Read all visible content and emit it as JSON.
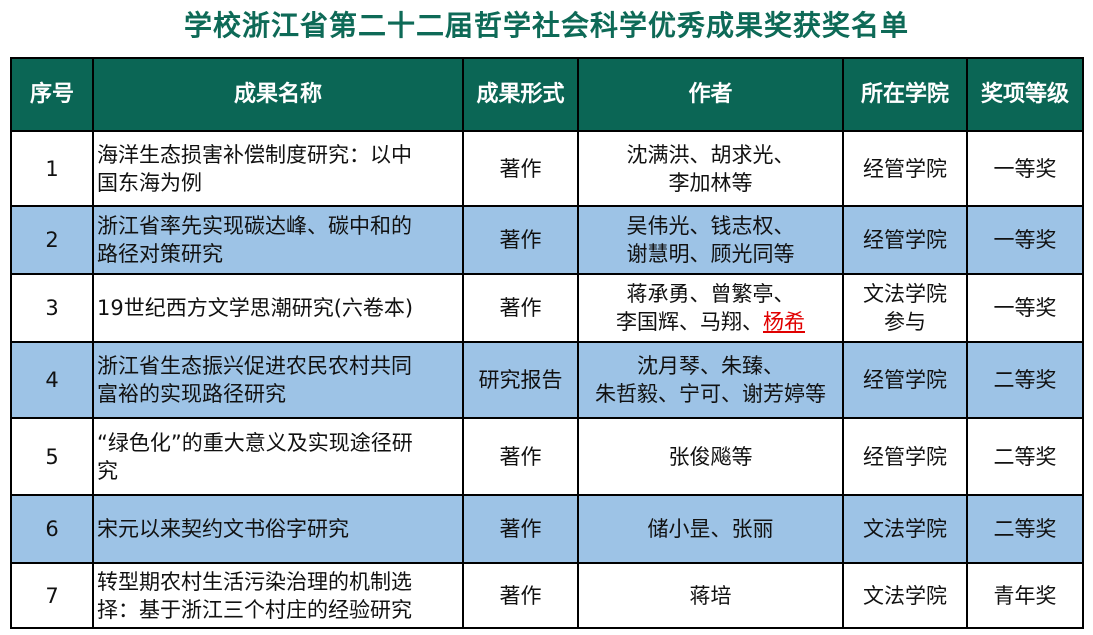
{
  "title": "学校浙江省第二十二届哲学社会科学优秀成果奖获奖名单",
  "headers": [
    "序号",
    "成果名称",
    "成果形式",
    "作者",
    "所在学院",
    "奖项等级"
  ],
  "colors": {
    "header_bg": "#0b6655",
    "title": "#0e6a57",
    "alt_row": "#9dc3e6",
    "highlight": "#e00000"
  },
  "rows": [
    {
      "no": "1",
      "name": [
        "海洋生态损害补偿制度研究：以中",
        "国东海为例"
      ],
      "form": "著作",
      "authors": [
        "沈满洪、胡求光、",
        "李加林等"
      ],
      "college": [
        "经管学院"
      ],
      "award": "一等奖"
    },
    {
      "no": "2",
      "name": [
        "浙江省率先实现碳达峰、碳中和的",
        "路径对策研究"
      ],
      "form": "著作",
      "authors": [
        "吴伟光、钱志权、",
        "谢慧明、顾光同等"
      ],
      "college": [
        "经管学院"
      ],
      "award": "一等奖"
    },
    {
      "no": "3",
      "name": [
        "19世纪西方文学思潮研究(六卷本)"
      ],
      "form": "著作",
      "authors": [
        "蒋承勇、曾繁亭、",
        "李国辉、马翔、"
      ],
      "authors_highlight": "杨希",
      "college": [
        "文法学院",
        "参与"
      ],
      "award": "一等奖"
    },
    {
      "no": "4",
      "name": [
        "浙江省生态振兴促进农民农村共同",
        "富裕的实现路径研究"
      ],
      "form": "研究报告",
      "authors": [
        "沈月琴、朱臻、",
        "朱哲毅、宁可、谢芳婷等"
      ],
      "college": [
        "经管学院"
      ],
      "award": "二等奖"
    },
    {
      "no": "5",
      "name": [
        "“绿色化”的重大意义及实现途径研",
        "究"
      ],
      "form": "著作",
      "authors": [
        "张俊飚等"
      ],
      "college": [
        "经管学院"
      ],
      "award": "二等奖"
    },
    {
      "no": "6",
      "name": [
        "宋元以来契约文书俗字研究"
      ],
      "form": "著作",
      "authors": [
        "储小昰、张丽"
      ],
      "college": [
        "文法学院"
      ],
      "award": "二等奖"
    },
    {
      "no": "7",
      "name": [
        "转型期农村生活污染治理的机制选",
        "择：基于浙江三个村庄的经验研究"
      ],
      "form": "著作",
      "authors": [
        "蒋培"
      ],
      "college": [
        "文法学院"
      ],
      "award": "青年奖"
    }
  ]
}
